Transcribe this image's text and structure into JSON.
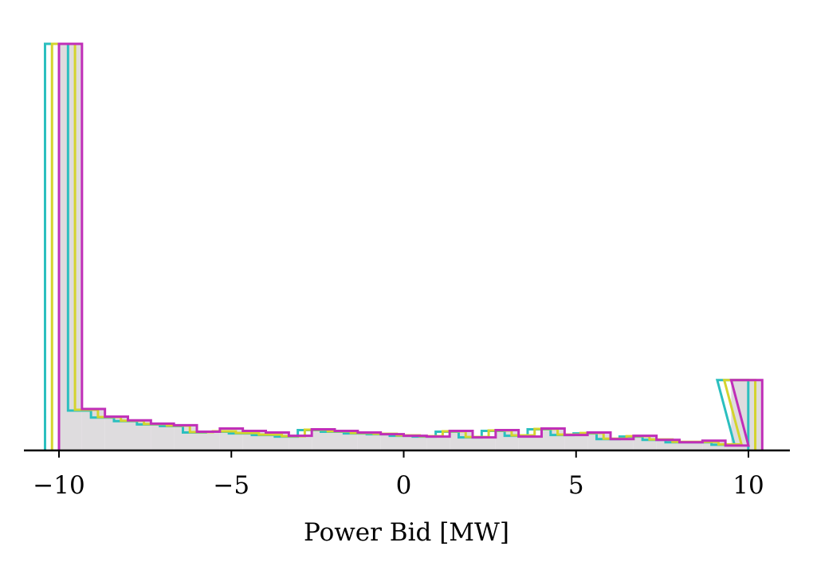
{
  "chart_data": {
    "type": "histogram",
    "xlabel": "Power Bid [MW]",
    "xlim": [
      -11,
      11.2
    ],
    "ylim": [
      0,
      1
    ],
    "xticks": [
      -10,
      -5,
      0,
      5,
      10
    ],
    "xtick_labels": [
      "−10",
      "−5",
      "0",
      "5",
      "10"
    ],
    "show_y_axis": false,
    "grid": false,
    "bins": [
      -10,
      -9.333,
      -8.667,
      -8,
      -7.333,
      -6.667,
      -6,
      -5.333,
      -4.667,
      -4,
      -3.333,
      -2.667,
      -2,
      -1.333,
      -0.667,
      0,
      0.667,
      1.333,
      2,
      2.667,
      3.333,
      4,
      4.667,
      5.333,
      6,
      6.667,
      7.333,
      8,
      8.667,
      9.333,
      10
    ],
    "series": [
      {
        "color": "#2bbfbf",
        "offset": -0.22,
        "values": [
          1.0,
          0.098,
          0.081,
          0.072,
          0.064,
          0.06,
          0.044,
          0.046,
          0.042,
          0.038,
          0.034,
          0.05,
          0.046,
          0.042,
          0.04,
          0.036,
          0.034,
          0.046,
          0.032,
          0.048,
          0.036,
          0.052,
          0.038,
          0.042,
          0.028,
          0.034,
          0.026,
          0.02,
          0.02,
          0.014,
          0.173
        ]
      },
      {
        "color": "#d4d42e",
        "offset": -0.11,
        "values": [
          1.0,
          0.1,
          0.082,
          0.073,
          0.065,
          0.061,
          0.045,
          0.047,
          0.043,
          0.039,
          0.035,
          0.051,
          0.047,
          0.043,
          0.041,
          0.037,
          0.035,
          0.047,
          0.033,
          0.049,
          0.037,
          0.053,
          0.039,
          0.043,
          0.029,
          0.035,
          0.027,
          0.021,
          0.021,
          0.015,
          0.173
        ]
      },
      {
        "color": "#c02fb8",
        "offset": 0.0,
        "values": [
          1.0,
          0.102,
          0.083,
          0.074,
          0.066,
          0.062,
          0.046,
          0.054,
          0.048,
          0.044,
          0.036,
          0.052,
          0.048,
          0.044,
          0.04,
          0.036,
          0.034,
          0.048,
          0.032,
          0.05,
          0.034,
          0.054,
          0.038,
          0.044,
          0.028,
          0.036,
          0.026,
          0.02,
          0.024,
          0.012,
          0.173
        ]
      }
    ]
  }
}
